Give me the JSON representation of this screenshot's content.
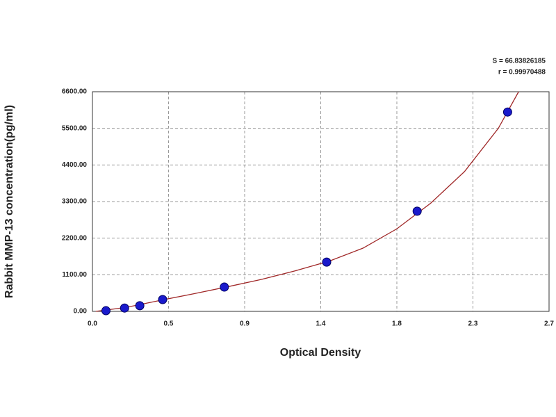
{
  "chart_data": {
    "type": "scatter",
    "annotations": [
      "S = 66.83826185",
      "r = 0.99970488"
    ],
    "x_label": "Optical Density",
    "y_label": "Rabbit MMP-13 concentration(pg/ml)",
    "xlim": [
      0,
      2.7
    ],
    "xticks": [
      {
        "value": 0,
        "label": "0.0"
      },
      {
        "value": 0.45,
        "label": "0.5"
      },
      {
        "value": 0.9,
        "label": "0.9"
      },
      {
        "value": 1.35,
        "label": "1.4"
      },
      {
        "value": 1.8,
        "label": "1.8"
      },
      {
        "value": 2.25,
        "label": "2.3"
      },
      {
        "value": 2.7,
        "label": "2.7"
      }
    ],
    "ylim": [
      0,
      6600
    ],
    "yticks": [
      {
        "value": 0,
        "label": "0.00"
      },
      {
        "value": 1100,
        "label": "1100.00"
      },
      {
        "value": 2200,
        "label": "2200.00"
      },
      {
        "value": 3300,
        "label": "3300.00"
      },
      {
        "value": 4400,
        "label": "4400.00"
      },
      {
        "value": 5500,
        "label": "5500.00"
      },
      {
        "value": 6600,
        "label": "6600.00"
      }
    ],
    "grid": true,
    "series": [
      {
        "type": "scatter",
        "color": "#1a1acc",
        "x": [
          0.08,
          0.19,
          0.28,
          0.415,
          0.78,
          1.385,
          1.92,
          2.455
        ],
        "values": [
          20,
          100,
          170,
          355,
          730,
          1480,
          3010,
          5990
        ]
      },
      {
        "type": "line",
        "color": "#a02828",
        "x": [
          0.02,
          0.2,
          0.4,
          0.6,
          0.8,
          1.0,
          1.2,
          1.4,
          1.6,
          1.8,
          2.0,
          2.2,
          2.4,
          2.52
        ],
        "values": [
          0,
          120,
          330,
          530,
          740,
          960,
          1220,
          1510,
          1900,
          2480,
          3250,
          4200,
          5500,
          6600
        ]
      }
    ]
  }
}
